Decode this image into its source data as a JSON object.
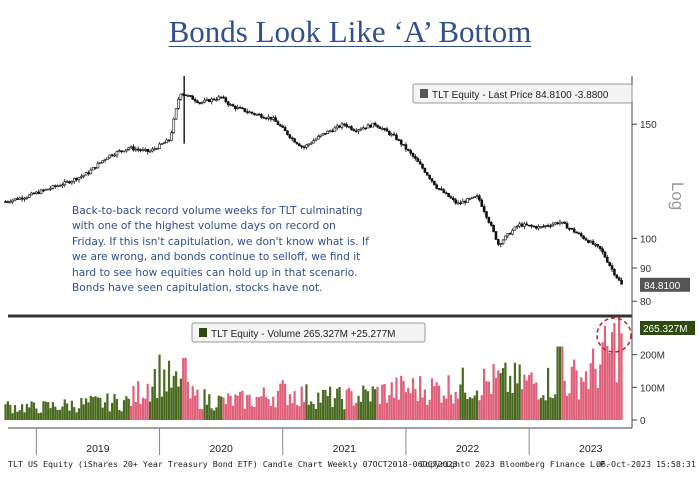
{
  "title": "Bonds Look Like ‘A’ Bottom",
  "annotation": "Back-to-back record volume weeks for TLT culminating with one of the highest volume days on record on Friday. If this isn't capitulation, we don't know what is. If we are wrong, and bonds continue to selloff, we find it hard to see how equities can hold up in that scenario. Bonds have seen capitulation, stocks have not.",
  "footer": {
    "left": "TLT US Equity (iShares 20+ Year Treasury Bond ETF) Candle Chart  Weekly 07OCT2018-06OCT2023",
    "middle": "Copyright© 2023 Bloomberg Finance L.P.",
    "right": "06-Oct-2023 15:58:31"
  },
  "colors": {
    "title": "#2f4f8f",
    "up_candle": "#3a5a1a",
    "volume_up": "#4a6b1f",
    "volume_down": "#e0607a",
    "price_badge": "#555555",
    "volume_badge": "#2e4a0f",
    "circle": "#cc2233"
  },
  "chart_data": [
    {
      "type": "line",
      "subtype": "candlestick",
      "legend": {
        "series": "TLT Equity - Last Price",
        "last": "84.8100",
        "change": "-3.8800",
        "position": "top-right"
      },
      "last_value_label": "84.8100",
      "ylabel": "Log",
      "yscale": "log",
      "ylim": [
        77,
        178
      ],
      "y_ticks": [
        "80",
        "90",
        "100",
        "150"
      ],
      "x_ticks": [
        "2019",
        "2020",
        "2021",
        "2022",
        "2023"
      ],
      "x": [
        "2018-10",
        "2018-12",
        "2019-02",
        "2019-04",
        "2019-06",
        "2019-08",
        "2019-10",
        "2019-12",
        "2020-02",
        "2020-03",
        "2020-05",
        "2020-07",
        "2020-08",
        "2020-10",
        "2020-12",
        "2021-02",
        "2021-03",
        "2021-05",
        "2021-07",
        "2021-08",
        "2021-10",
        "2021-12",
        "2022-02",
        "2022-04",
        "2022-06",
        "2022-08",
        "2022-10",
        "2022-12",
        "2023-02",
        "2023-04",
        "2023-06",
        "2023-08",
        "2023-09",
        "2023-10"
      ],
      "series": [
        {
          "values": [
            114,
            116,
            119,
            122,
            126,
            134,
            138,
            136,
            142,
            168,
            162,
            165,
            160,
            156,
            153,
            142,
            138,
            145,
            150,
            147,
            150,
            143,
            132,
            120,
            113,
            116,
            98,
            105,
            104,
            106,
            101,
            96,
            90,
            84.81
          ]
        }
      ]
    },
    {
      "type": "bar",
      "legend": {
        "series": "TLT Equity - Volume",
        "last": "265.327M",
        "change": "+25.277M",
        "position": "top-center"
      },
      "last_value_label": "265.327M",
      "ylim": [
        0,
        300
      ],
      "unit": "M",
      "y_ticks": [
        "0",
        "100M",
        "200M"
      ],
      "x_ticks": [
        "2019",
        "2020",
        "2021",
        "2022",
        "2023"
      ],
      "x": [
        "2018-Q4",
        "2019-Q1",
        "2019-Q2",
        "2019-Q3",
        "2019-Q4",
        "2020-Q1",
        "2020-Q2",
        "2020-Q3",
        "2020-Q4",
        "2021-Q1",
        "2021-Q2",
        "2021-Q3",
        "2021-Q4",
        "2022-Q1",
        "2022-Q2",
        "2022-Q3",
        "2022-Q4",
        "2023-Q1",
        "2023-Q2",
        "2023-Q3",
        "2023-Q4"
      ],
      "series": [
        {
          "values": [
            45,
            40,
            48,
            55,
            60,
            150,
            75,
            60,
            65,
            90,
            75,
            70,
            85,
            100,
            100,
            115,
            125,
            120,
            120,
            150,
            265.327
          ]
        }
      ],
      "annotation": "dashed red circle around the final record-volume bars"
    }
  ]
}
